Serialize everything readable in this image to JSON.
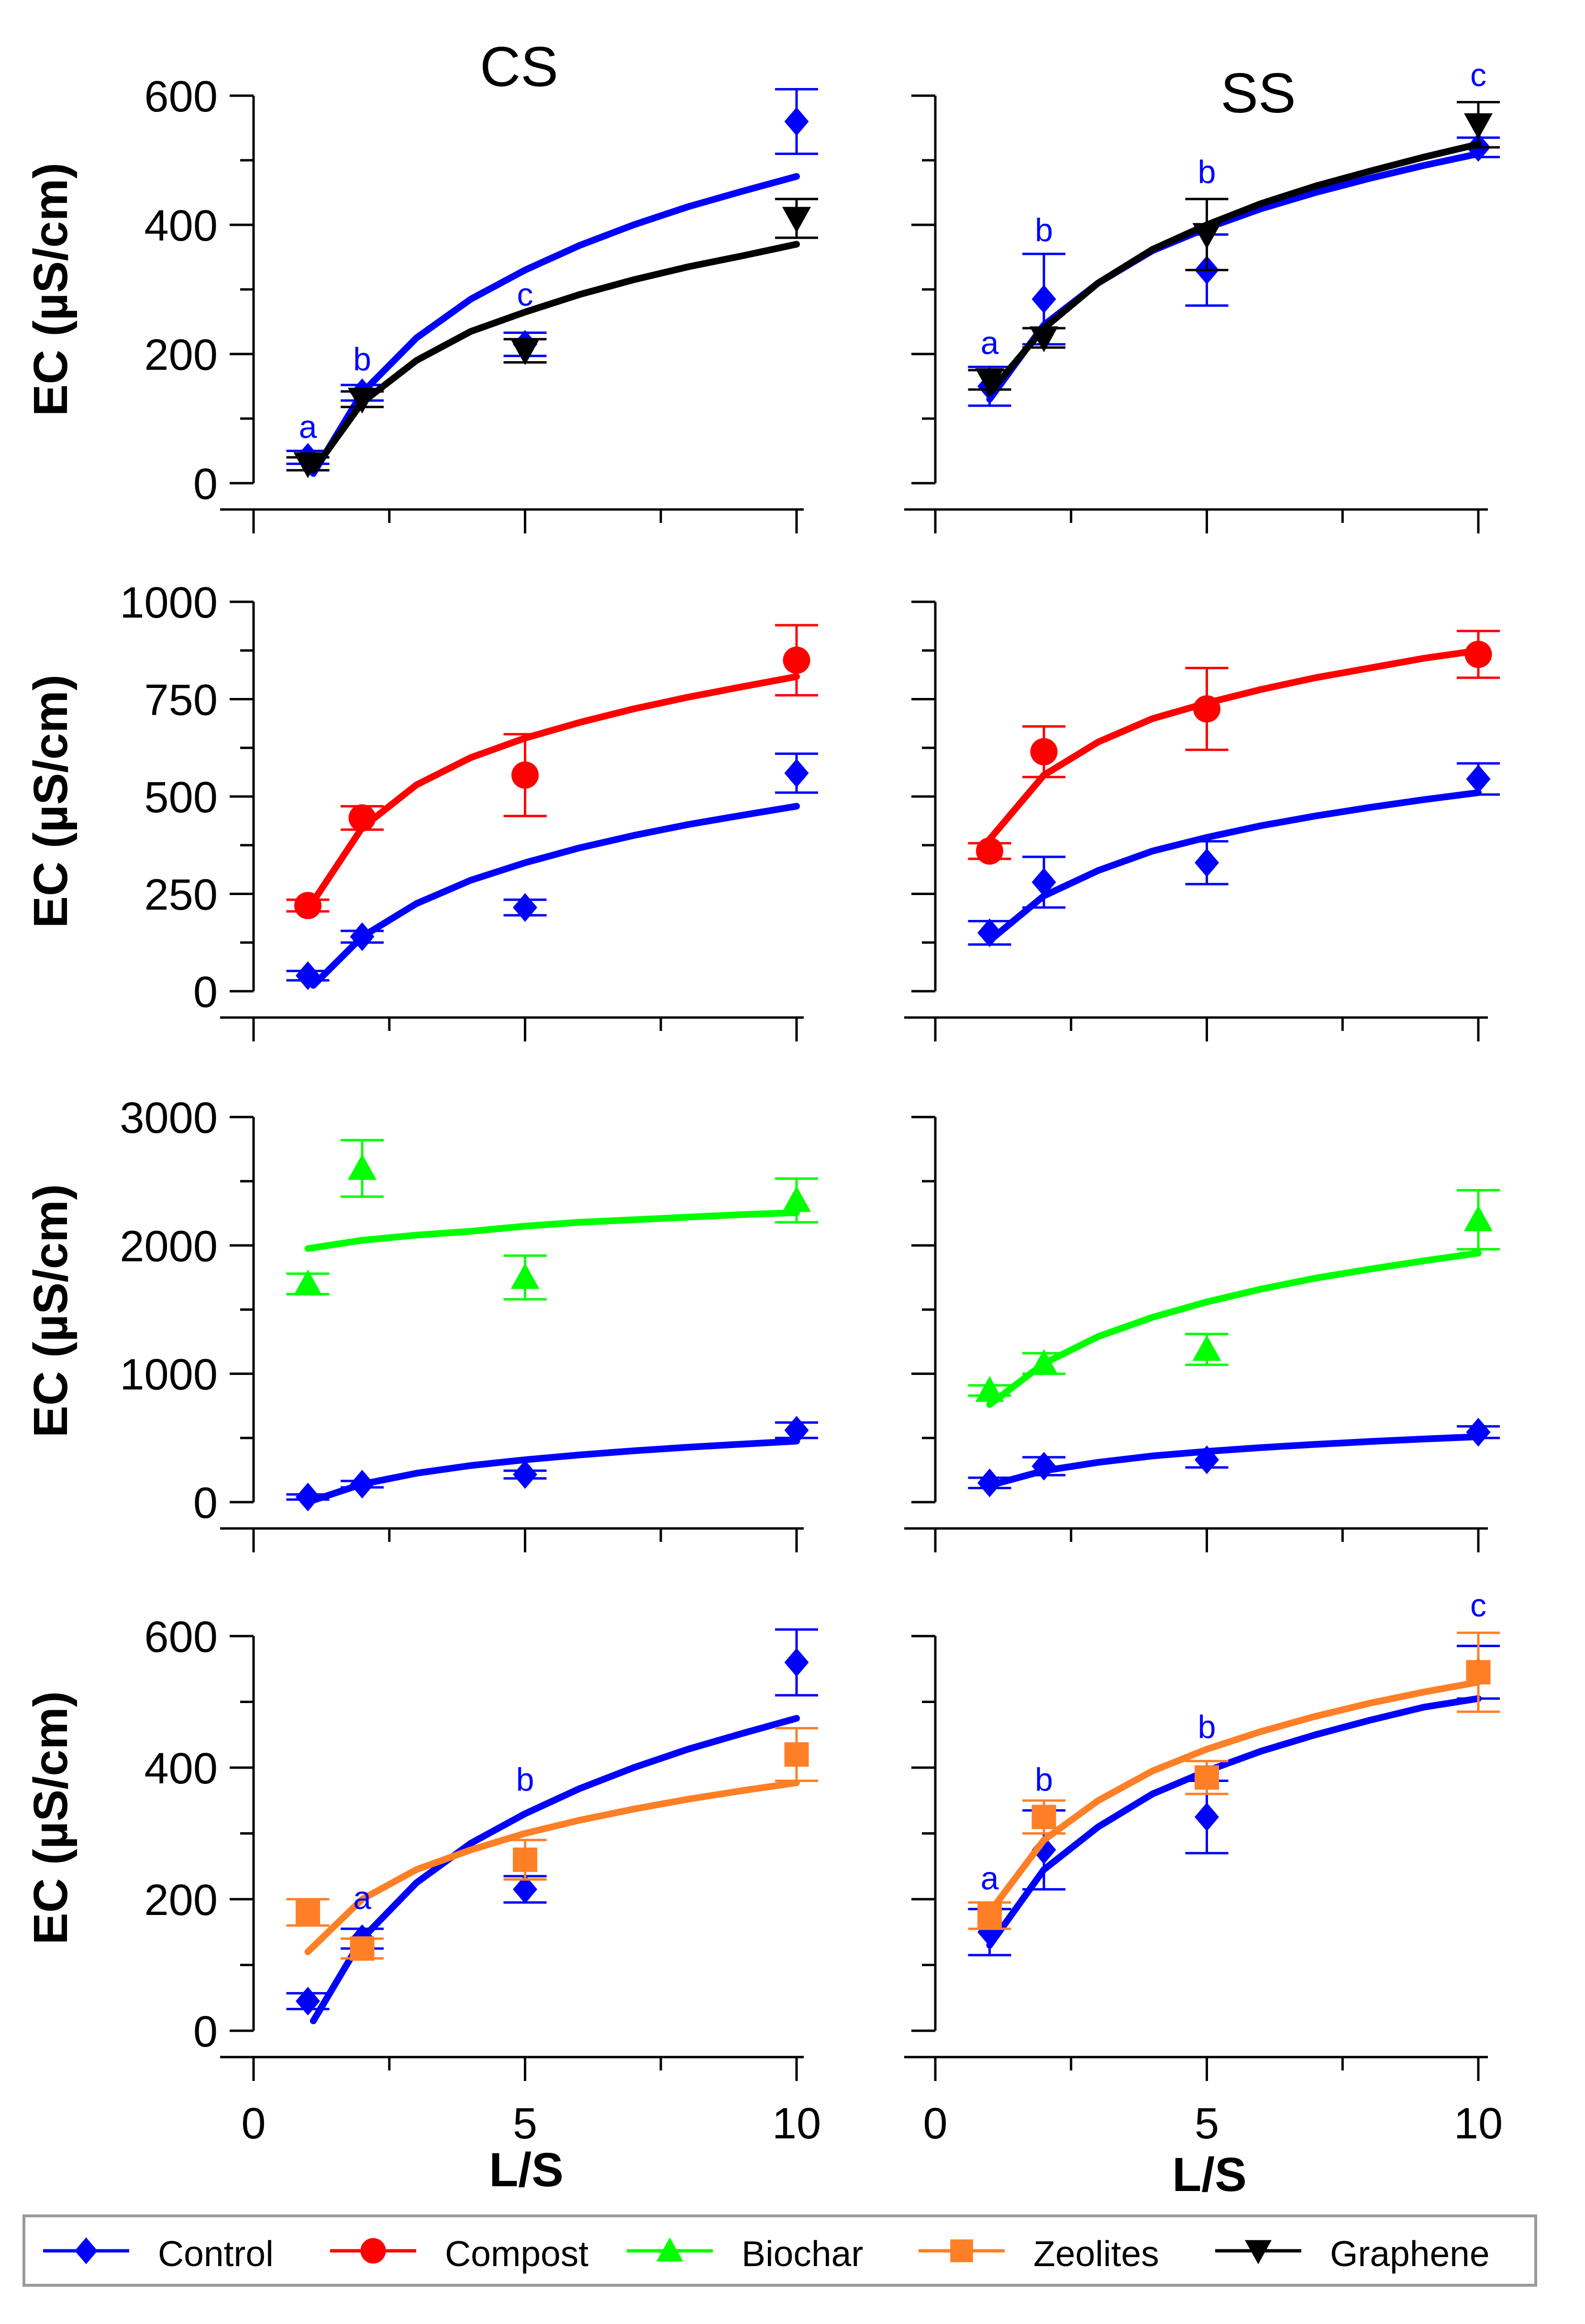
{
  "figure": {
    "column_titles": [
      "CS",
      "SS"
    ],
    "ylabel": "EC (µS/cm)",
    "xlabel": "L/S",
    "x_ticks": [
      0,
      5,
      10
    ],
    "xlim": [
      0,
      10.5
    ]
  },
  "legend": {
    "items": [
      {
        "label": "Control",
        "color": "#0000ff",
        "marker": "diamond"
      },
      {
        "label": "Compost",
        "color": "#ff0000",
        "marker": "circle"
      },
      {
        "label": "Biochar",
        "color": "#00ff00",
        "marker": "triangle-up"
      },
      {
        "label": "Zeolites",
        "color": "#ff7f27",
        "marker": "square"
      },
      {
        "label": "Graphene",
        "color": "#000000",
        "marker": "triangle-down"
      }
    ]
  },
  "chart_data": [
    {
      "type": "scatter",
      "row": 1,
      "column": "CS",
      "ylim": [
        0,
        600
      ],
      "y_ticks": [
        0,
        200,
        400,
        600
      ],
      "series": [
        {
          "name": "Control",
          "x": [
            1,
            2,
            5,
            10
          ],
          "y": [
            40,
            140,
            215,
            560
          ],
          "err": [
            10,
            12,
            18,
            50
          ],
          "fit": [
            [
              1.1,
              15
            ],
            [
              2,
              140
            ],
            [
              3,
              225
            ],
            [
              4,
              285
            ],
            [
              5,
              330
            ],
            [
              6,
              368
            ],
            [
              7,
              400
            ],
            [
              8,
              428
            ],
            [
              9,
              452
            ],
            [
              10,
              475
            ]
          ]
        },
        {
          "name": "Graphene",
          "x": [
            1,
            2,
            5,
            10
          ],
          "y": [
            30,
            130,
            205,
            410
          ],
          "err": [
            10,
            12,
            18,
            30
          ],
          "fit": [
            [
              1.1,
              20
            ],
            [
              2,
              125
            ],
            [
              3,
              190
            ],
            [
              4,
              235
            ],
            [
              5,
              265
            ],
            [
              6,
              292
            ],
            [
              7,
              315
            ],
            [
              8,
              335
            ],
            [
              9,
              352
            ],
            [
              10,
              370
            ]
          ]
        }
      ],
      "annotations": [
        {
          "text": "a",
          "x": 1,
          "y": 70
        },
        {
          "text": "b",
          "x": 2,
          "y": 175
        },
        {
          "text": "c",
          "x": 5,
          "y": 275
        }
      ]
    },
    {
      "type": "scatter",
      "row": 1,
      "column": "SS",
      "ylim": [
        0,
        600
      ],
      "y_ticks": [
        0,
        200,
        400,
        600
      ],
      "series": [
        {
          "name": "Control",
          "x": [
            1,
            2,
            5,
            10
          ],
          "y": [
            150,
            285,
            330,
            520
          ],
          "err": [
            30,
            70,
            55,
            15
          ],
          "fit": [
            [
              1,
              130
            ],
            [
              2,
              245
            ],
            [
              3,
              310
            ],
            [
              4,
              360
            ],
            [
              5,
              395
            ],
            [
              6,
              425
            ],
            [
              7,
              450
            ],
            [
              8,
              472
            ],
            [
              9,
              492
            ],
            [
              10,
              510
            ]
          ]
        },
        {
          "name": "Graphene",
          "x": [
            1,
            2,
            5,
            10
          ],
          "y": [
            160,
            225,
            385,
            555
          ],
          "err": [
            15,
            15,
            55,
            35
          ],
          "fit": [
            [
              1,
              140
            ],
            [
              2,
              240
            ],
            [
              3,
              310
            ],
            [
              4,
              362
            ],
            [
              5,
              400
            ],
            [
              6,
              433
            ],
            [
              7,
              460
            ],
            [
              8,
              483
            ],
            [
              9,
              505
            ],
            [
              10,
              525
            ]
          ]
        }
      ],
      "annotations": [
        {
          "text": "a",
          "x": 1,
          "y": 200
        },
        {
          "text": "b",
          "x": 2,
          "y": 375
        },
        {
          "text": "b",
          "x": 5,
          "y": 465
        },
        {
          "text": "c",
          "x": 10,
          "y": 615
        }
      ]
    },
    {
      "type": "scatter",
      "row": 2,
      "column": "CS",
      "ylim": [
        0,
        1000
      ],
      "y_ticks": [
        0,
        250,
        500,
        750,
        1000
      ],
      "series": [
        {
          "name": "Compost",
          "x": [
            1,
            2,
            5,
            10
          ],
          "y": [
            220,
            445,
            555,
            850
          ],
          "err": [
            15,
            30,
            105,
            90
          ],
          "fit": [
            [
              1,
              210
            ],
            [
              2,
              420
            ],
            [
              3,
              530
            ],
            [
              4,
              600
            ],
            [
              5,
              650
            ],
            [
              6,
              690
            ],
            [
              7,
              725
            ],
            [
              8,
              755
            ],
            [
              9,
              782
            ],
            [
              10,
              808
            ]
          ]
        },
        {
          "name": "Control",
          "x": [
            1,
            2,
            5,
            10
          ],
          "y": [
            40,
            140,
            215,
            560
          ],
          "err": [
            12,
            15,
            20,
            50
          ],
          "fit": [
            [
              1.1,
              15
            ],
            [
              2,
              140
            ],
            [
              3,
              225
            ],
            [
              4,
              285
            ],
            [
              5,
              330
            ],
            [
              6,
              368
            ],
            [
              7,
              400
            ],
            [
              8,
              428
            ],
            [
              9,
              452
            ],
            [
              10,
              475
            ]
          ]
        }
      ],
      "annotations": []
    },
    {
      "type": "scatter",
      "row": 2,
      "column": "SS",
      "ylim": [
        0,
        1000
      ],
      "y_ticks": [
        0,
        250,
        500,
        750,
        1000
      ],
      "series": [
        {
          "name": "Compost",
          "x": [
            1,
            2,
            5,
            10
          ],
          "y": [
            360,
            615,
            725,
            865
          ],
          "err": [
            20,
            65,
            105,
            60
          ],
          "fit": [
            [
              1,
              390
            ],
            [
              2,
              555
            ],
            [
              3,
              640
            ],
            [
              4,
              700
            ],
            [
              5,
              740
            ],
            [
              6,
              775
            ],
            [
              7,
              805
            ],
            [
              8,
              830
            ],
            [
              9,
              855
            ],
            [
              10,
              875
            ]
          ]
        },
        {
          "name": "Control",
          "x": [
            1,
            2,
            5,
            10
          ],
          "y": [
            150,
            280,
            330,
            545
          ],
          "err": [
            30,
            65,
            55,
            40
          ],
          "fit": [
            [
              1,
              130
            ],
            [
              2,
              245
            ],
            [
              3,
              310
            ],
            [
              4,
              360
            ],
            [
              5,
              395
            ],
            [
              6,
              425
            ],
            [
              7,
              450
            ],
            [
              8,
              472
            ],
            [
              9,
              492
            ],
            [
              10,
              510
            ]
          ]
        }
      ],
      "annotations": []
    },
    {
      "type": "scatter",
      "row": 3,
      "column": "CS",
      "ylim": [
        0,
        3000
      ],
      "y_ticks": [
        0,
        1000,
        2000,
        3000
      ],
      "series": [
        {
          "name": "Biochar",
          "x": [
            1,
            2,
            5,
            10
          ],
          "y": [
            1700,
            2600,
            1750,
            2350
          ],
          "err": [
            80,
            220,
            170,
            170
          ],
          "fit": [
            [
              1,
              1975
            ],
            [
              2,
              2040
            ],
            [
              3,
              2080
            ],
            [
              4,
              2110
            ],
            [
              5,
              2150
            ],
            [
              6,
              2180
            ],
            [
              7,
              2200
            ],
            [
              8,
              2220
            ],
            [
              9,
              2240
            ],
            [
              10,
              2255
            ]
          ]
        },
        {
          "name": "Control",
          "x": [
            1,
            2,
            5,
            10
          ],
          "y": [
            40,
            140,
            215,
            560
          ],
          "err": [
            20,
            25,
            30,
            60
          ],
          "fit": [
            [
              1.1,
              15
            ],
            [
              2,
              140
            ],
            [
              3,
              225
            ],
            [
              4,
              285
            ],
            [
              5,
              330
            ],
            [
              6,
              368
            ],
            [
              7,
              400
            ],
            [
              8,
              428
            ],
            [
              9,
              452
            ],
            [
              10,
              475
            ]
          ]
        }
      ],
      "annotations": []
    },
    {
      "type": "scatter",
      "row": 3,
      "column": "SS",
      "ylim": [
        0,
        3000
      ],
      "y_ticks": [
        0,
        1000,
        2000,
        3000
      ],
      "series": [
        {
          "name": "Biochar",
          "x": [
            1,
            2,
            5,
            10
          ],
          "y": [
            870,
            1080,
            1190,
            2200
          ],
          "err": [
            40,
            80,
            120,
            230
          ],
          "fit": [
            [
              1,
              760
            ],
            [
              2,
              1080
            ],
            [
              3,
              1290
            ],
            [
              4,
              1440
            ],
            [
              5,
              1560
            ],
            [
              6,
              1660
            ],
            [
              7,
              1745
            ],
            [
              8,
              1815
            ],
            [
              9,
              1880
            ],
            [
              10,
              1940
            ]
          ]
        },
        {
          "name": "Control",
          "x": [
            1,
            2,
            5,
            10
          ],
          "y": [
            150,
            280,
            330,
            545
          ],
          "err": [
            40,
            70,
            60,
            45
          ],
          "fit": [
            [
              1,
              130
            ],
            [
              2,
              245
            ],
            [
              3,
              310
            ],
            [
              4,
              360
            ],
            [
              5,
              395
            ],
            [
              6,
              425
            ],
            [
              7,
              450
            ],
            [
              8,
              472
            ],
            [
              9,
              492
            ],
            [
              10,
              510
            ]
          ]
        }
      ],
      "annotations": []
    },
    {
      "type": "scatter",
      "row": 4,
      "column": "CS",
      "ylim": [
        0,
        600
      ],
      "y_ticks": [
        0,
        200,
        400,
        600
      ],
      "series": [
        {
          "name": "Control",
          "x": [
            1,
            2,
            5,
            10
          ],
          "y": [
            45,
            140,
            215,
            560
          ],
          "err": [
            12,
            15,
            20,
            50
          ],
          "fit": [
            [
              1.1,
              15
            ],
            [
              2,
              140
            ],
            [
              3,
              225
            ],
            [
              4,
              285
            ],
            [
              5,
              330
            ],
            [
              6,
              368
            ],
            [
              7,
              400
            ],
            [
              8,
              428
            ],
            [
              9,
              452
            ],
            [
              10,
              475
            ]
          ]
        },
        {
          "name": "Zeolites",
          "x": [
            1,
            2,
            5,
            10
          ],
          "y": [
            180,
            125,
            260,
            420
          ],
          "err": [
            20,
            15,
            30,
            40
          ],
          "fit": [
            [
              1,
              120
            ],
            [
              2,
              200
            ],
            [
              3,
              245
            ],
            [
              4,
              275
            ],
            [
              5,
              300
            ],
            [
              6,
              320
            ],
            [
              7,
              337
            ],
            [
              8,
              352
            ],
            [
              9,
              365
            ],
            [
              10,
              377
            ]
          ]
        }
      ],
      "annotations": [
        {
          "text": "a",
          "x": 2,
          "y": 185
        },
        {
          "text": "b",
          "x": 5,
          "y": 365
        }
      ]
    },
    {
      "type": "scatter",
      "row": 4,
      "column": "SS",
      "ylim": [
        0,
        600
      ],
      "y_ticks": [
        0,
        200,
        400,
        600
      ],
      "series": [
        {
          "name": "Control",
          "x": [
            1,
            2,
            5,
            10
          ],
          "y": [
            150,
            275,
            325,
            545
          ],
          "err": [
            35,
            60,
            55,
            40
          ],
          "fit": [
            [
              1,
              130
            ],
            [
              2,
              245
            ],
            [
              3,
              310
            ],
            [
              4,
              360
            ],
            [
              5,
              395
            ],
            [
              6,
              425
            ],
            [
              7,
              450
            ],
            [
              8,
              472
            ],
            [
              9,
              492
            ],
            [
              10,
              505
            ]
          ]
        },
        {
          "name": "Zeolites",
          "x": [
            1,
            2,
            5,
            10
          ],
          "y": [
            175,
            325,
            385,
            545
          ],
          "err": [
            20,
            25,
            25,
            60
          ],
          "fit": [
            [
              1,
              180
            ],
            [
              2,
              290
            ],
            [
              3,
              350
            ],
            [
              4,
              395
            ],
            [
              5,
              428
            ],
            [
              6,
              455
            ],
            [
              7,
              478
            ],
            [
              8,
              498
            ],
            [
              9,
              515
            ],
            [
              10,
              530
            ]
          ]
        }
      ],
      "annotations": [
        {
          "text": "a",
          "x": 1,
          "y": 215
        },
        {
          "text": "b",
          "x": 2,
          "y": 365
        },
        {
          "text": "b",
          "x": 5,
          "y": 445
        },
        {
          "text": "c",
          "x": 10,
          "y": 630
        }
      ]
    }
  ]
}
